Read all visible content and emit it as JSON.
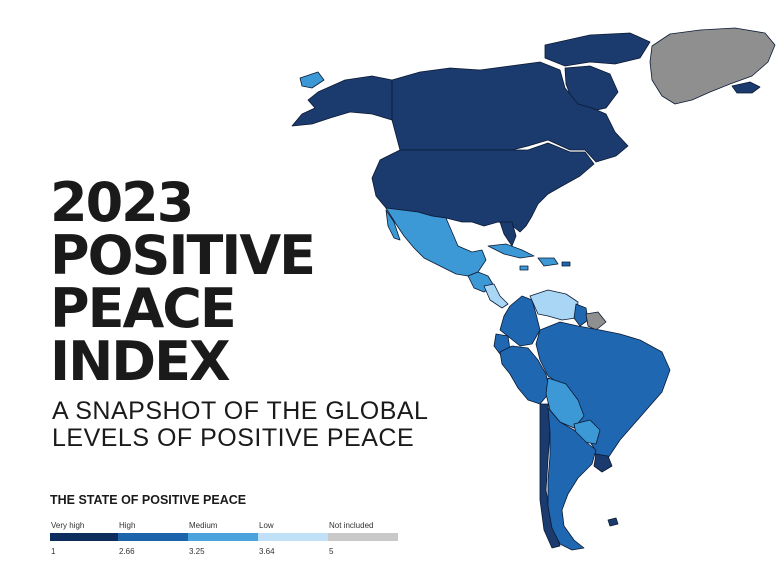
{
  "title_lines": [
    "2023",
    "POSITIVE",
    "PEACE",
    "INDEX"
  ],
  "subtitle_lines": [
    "A SNAPSHOT OF THE GLOBAL",
    "LEVELS OF POSITIVE PEACE"
  ],
  "legend": {
    "title": "THE STATE OF POSITIVE PEACE",
    "categories": [
      {
        "label": "Very high",
        "value": "1",
        "color": "#0d2d5e"
      },
      {
        "label": "High",
        "value": "2.66",
        "color": "#1c64ab"
      },
      {
        "label": "Medium",
        "value": "3.25",
        "color": "#4aa3dc"
      },
      {
        "label": "Low",
        "value": "3.64",
        "color": "#bfe0f7"
      },
      {
        "label": "Not included",
        "value": "5",
        "color": "#c9c9c9"
      }
    ]
  },
  "map_colors": {
    "very_high": "#1b3a6e",
    "high": "#1f67b1",
    "medium": "#3d98d6",
    "low": "#a9d6f5",
    "not_included": "#8f8f8f",
    "border": "#0b1a33"
  }
}
